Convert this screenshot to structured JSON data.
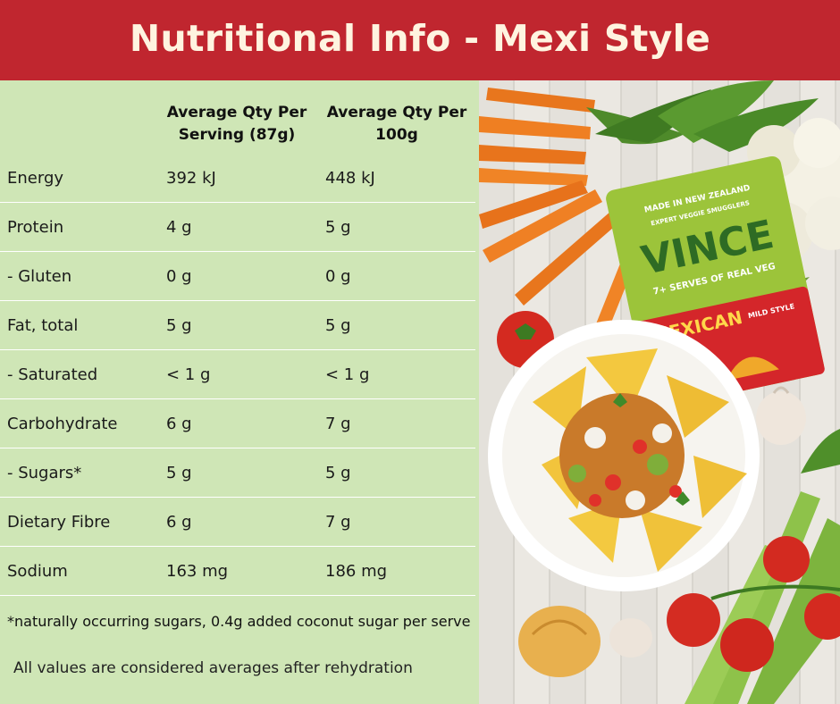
{
  "title": "Nutritional Info - Mexi Style",
  "columns": {
    "per_serving": "Average Qty Per Serving (87g)",
    "per_100g": "Average Qty Per 100g"
  },
  "rows": [
    {
      "name": "Energy",
      "serving": "392 kJ",
      "per100": "448 kJ"
    },
    {
      "name": "Protein",
      "serving": "4 g",
      "per100": "5 g"
    },
    {
      "name": "- Gluten",
      "serving": "0 g",
      "per100": "0 g"
    },
    {
      "name": "Fat, total",
      "serving": "5 g",
      "per100": "5 g"
    },
    {
      "name": "- Saturated",
      "serving": "< 1 g",
      "per100": "< 1 g"
    },
    {
      "name": "Carbohydrate",
      "serving": "6 g",
      "per100": "7 g"
    },
    {
      "name": "- Sugars*",
      "serving": "5 g",
      "per100": "5 g"
    },
    {
      "name": "Dietary Fibre",
      "serving": "6 g",
      "per100": "7 g"
    },
    {
      "name": "Sodium",
      "serving": "163 mg",
      "per100": "186 mg"
    }
  ],
  "footnote": "*naturally occurring sugars, 0.4g added coconut sugar per serve",
  "note": "All values are considered averages after rehydration",
  "package": {
    "brand": "VINCE",
    "origin": "MADE IN NEW ZEALAND",
    "tagline": "EXPERT VEGGIE SMUGGLERS",
    "serves": "7+ SERVES OF REAL VEG",
    "flavour": "MEXICAN",
    "style": "MILD STYLE"
  },
  "colors": {
    "header": "#c0262f",
    "panel": "#cfe6b6",
    "title_text": "#fff4e0"
  }
}
